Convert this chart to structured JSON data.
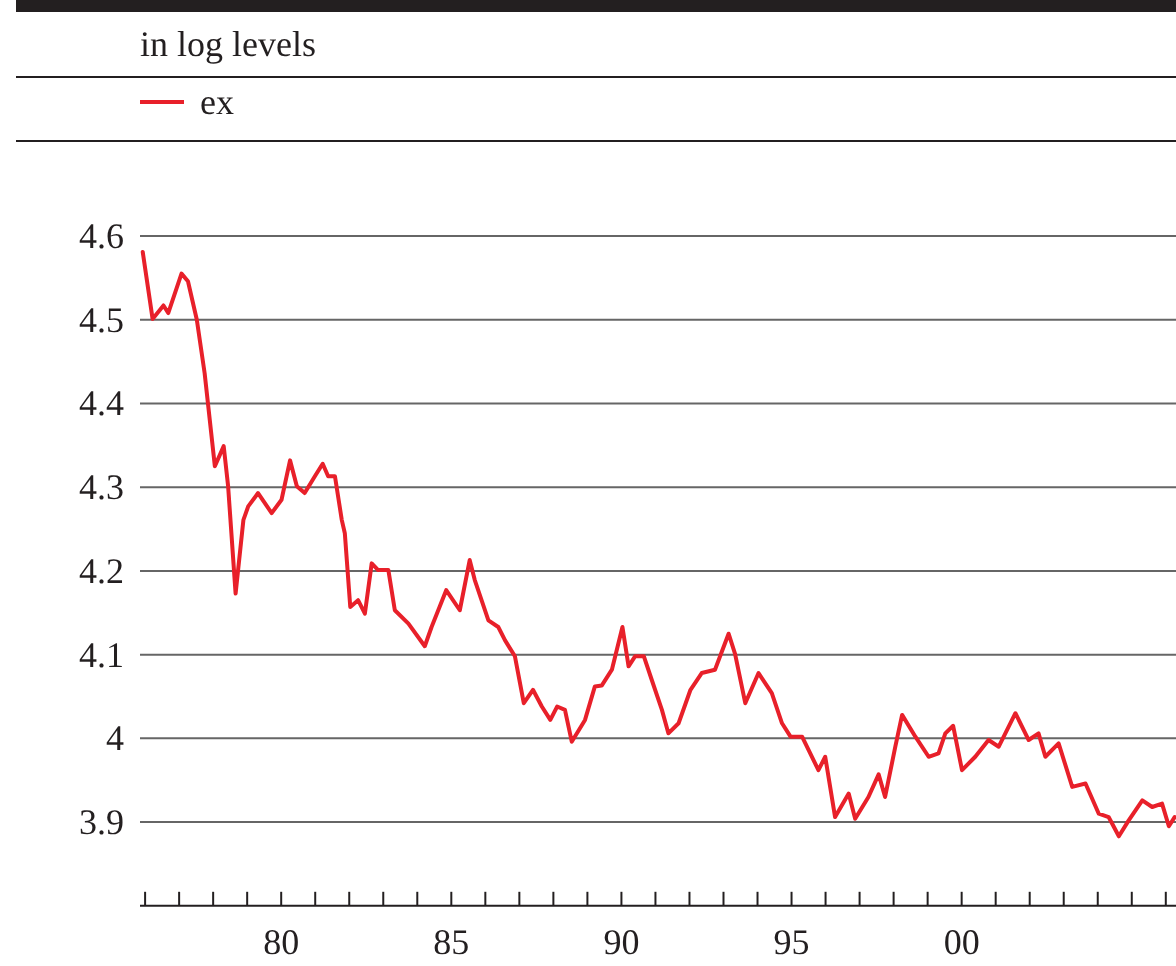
{
  "chart_data": {
    "type": "line",
    "subtitle": "in log levels",
    "legend": "top",
    "grid": "y",
    "line_style": "solid",
    "marker": "none",
    "xlim": [
      1975.85,
      2006.3
    ],
    "ylim": [
      3.8,
      4.6
    ],
    "yticks": [
      {
        "value": 3.9,
        "label": "3.9"
      },
      {
        "value": 4,
        "label": "4"
      },
      {
        "value": 4.1,
        "label": "4.1"
      },
      {
        "value": 4.2,
        "label": "4.2"
      },
      {
        "value": 4.3,
        "label": "4.3"
      },
      {
        "value": 4.4,
        "label": "4.4"
      },
      {
        "value": 4.5,
        "label": "4.5"
      },
      {
        "value": 4.6,
        "label": "4.6"
      }
    ],
    "xticks": [
      {
        "value": 1976,
        "label": null
      },
      {
        "value": 1977,
        "label": null
      },
      {
        "value": 1978,
        "label": null
      },
      {
        "value": 1979,
        "label": null
      },
      {
        "value": 1980,
        "label": "80"
      },
      {
        "value": 1981,
        "label": null
      },
      {
        "value": 1982,
        "label": null
      },
      {
        "value": 1983,
        "label": null
      },
      {
        "value": 1984,
        "label": null
      },
      {
        "value": 1985,
        "label": "85"
      },
      {
        "value": 1986,
        "label": null
      },
      {
        "value": 1987,
        "label": null
      },
      {
        "value": 1988,
        "label": null
      },
      {
        "value": 1989,
        "label": null
      },
      {
        "value": 1990,
        "label": "90"
      },
      {
        "value": 1991,
        "label": null
      },
      {
        "value": 1992,
        "label": null
      },
      {
        "value": 1993,
        "label": null
      },
      {
        "value": 1994,
        "label": null
      },
      {
        "value": 1995,
        "label": "95"
      },
      {
        "value": 1996,
        "label": null
      },
      {
        "value": 1997,
        "label": null
      },
      {
        "value": 1998,
        "label": null
      },
      {
        "value": 1999,
        "label": null
      },
      {
        "value": 2000,
        "label": "00"
      },
      {
        "value": 2001,
        "label": null
      },
      {
        "value": 2002,
        "label": null
      },
      {
        "value": 2003,
        "label": null
      },
      {
        "value": 2004,
        "label": null
      },
      {
        "value": 2005,
        "label": null
      },
      {
        "value": 2006,
        "label": null
      }
    ],
    "series": [
      {
        "name": "ex",
        "color": "#e8202a",
        "x": [
          1975.93,
          1976.22,
          1976.54,
          1976.68,
          1977.07,
          1977.26,
          1977.52,
          1977.75,
          1978.05,
          1978.31,
          1978.44,
          1978.66,
          1978.89,
          1979.03,
          1979.32,
          1979.72,
          1980.01,
          1980.26,
          1980.46,
          1980.69,
          1980.99,
          1981.22,
          1981.38,
          1981.58,
          1981.78,
          1981.87,
          1982.03,
          1982.26,
          1982.46,
          1982.66,
          1982.85,
          1983.15,
          1983.34,
          1983.74,
          1984.22,
          1984.42,
          1984.85,
          1985.25,
          1985.54,
          1985.69,
          1986.09,
          1986.38,
          1986.58,
          1986.87,
          1987.13,
          1987.4,
          1987.66,
          1987.91,
          1988.11,
          1988.34,
          1988.54,
          1988.93,
          1989.22,
          1989.42,
          1989.72,
          1990.03,
          1990.21,
          1990.4,
          1990.66,
          1990.89,
          1991.19,
          1991.38,
          1991.68,
          1992.03,
          1992.36,
          1992.75,
          1993.15,
          1993.34,
          1993.64,
          1994.03,
          1994.42,
          1994.72,
          1994.97,
          1995.31,
          1995.79,
          1995.99,
          1996.28,
          1996.68,
          1996.87,
          1997.26,
          1997.56,
          1997.75,
          1998.05,
          1998.25,
          1998.64,
          1999.03,
          1999.32,
          1999.52,
          1999.75,
          2000.01,
          2000.4,
          2000.79,
          2001.09,
          2001.58,
          2001.97,
          2002.26,
          2002.46,
          2002.85,
          2003.25,
          2003.64,
          2004.03,
          2004.32,
          2004.62,
          2004.91,
          2005.31,
          2005.6,
          2005.89,
          2006.09,
          2006.26
        ],
        "values": [
          4.581,
          4.501,
          4.517,
          4.508,
          4.555,
          4.546,
          4.5,
          4.436,
          4.325,
          4.349,
          4.301,
          4.173,
          4.261,
          4.277,
          4.293,
          4.269,
          4.285,
          4.332,
          4.301,
          4.293,
          4.313,
          4.328,
          4.313,
          4.313,
          4.261,
          4.245,
          4.157,
          4.165,
          4.149,
          4.209,
          4.201,
          4.201,
          4.153,
          4.137,
          4.11,
          4.133,
          4.177,
          4.153,
          4.213,
          4.189,
          4.141,
          4.133,
          4.117,
          4.098,
          4.042,
          4.058,
          4.038,
          4.022,
          4.038,
          4.034,
          3.996,
          4.022,
          4.062,
          4.063,
          4.082,
          4.133,
          4.086,
          4.098,
          4.098,
          4.07,
          4.034,
          4.006,
          4.018,
          4.058,
          4.078,
          4.082,
          4.125,
          4.101,
          4.042,
          4.078,
          4.054,
          4.018,
          4.002,
          4.002,
          3.962,
          3.978,
          3.906,
          3.934,
          3.904,
          3.93,
          3.957,
          3.93,
          3.99,
          4.028,
          4.002,
          3.978,
          3.982,
          4.006,
          4.015,
          3.962,
          3.978,
          3.998,
          3.99,
          4.03,
          3.998,
          4.006,
          3.978,
          3.994,
          3.942,
          3.946,
          3.91,
          3.906,
          3.883,
          3.902,
          3.926,
          3.918,
          3.922,
          3.895,
          3.906
        ]
      }
    ]
  }
}
